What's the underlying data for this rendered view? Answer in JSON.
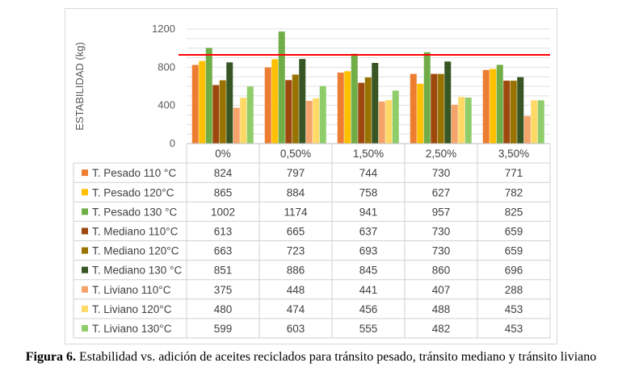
{
  "chart_data": {
    "type": "bar",
    "ylabel": "ESTABILIDAD (kg)",
    "ylim": [
      0,
      1200
    ],
    "yticks": [
      "0",
      "400",
      "800",
      "1200"
    ],
    "categories": [
      "0%",
      "0,50%",
      "1,50%",
      "2,50%",
      "3,50%"
    ],
    "reference_line": 930,
    "reference_color": "#ff0000",
    "grid": true,
    "legend": "data-table",
    "series": [
      {
        "name": "T. Pesado 110 °C",
        "color": "#ed7d31",
        "values": [
          824,
          797,
          744,
          730,
          771
        ]
      },
      {
        "name": "T. Pesado 120°C",
        "color": "#ffc000",
        "values": [
          865,
          884,
          758,
          627,
          782
        ]
      },
      {
        "name": "T. Pesado 130 °C",
        "color": "#70ad47",
        "values": [
          1002,
          1174,
          941,
          957,
          825
        ]
      },
      {
        "name": "T. Mediano 110°C",
        "color": "#9e480e",
        "values": [
          613,
          665,
          637,
          730,
          659
        ]
      },
      {
        "name": "T. Mediano 120°C",
        "color": "#997300",
        "values": [
          663,
          723,
          693,
          730,
          659
        ]
      },
      {
        "name": "T. Mediano 130 °C",
        "color": "#375623",
        "values": [
          851,
          886,
          845,
          860,
          696
        ]
      },
      {
        "name": "T. Liviano 110°C",
        "color": "#f4a46b",
        "values": [
          375,
          448,
          441,
          407,
          288
        ]
      },
      {
        "name": "T. Liviano 120°C",
        "color": "#ffd966",
        "values": [
          480,
          474,
          456,
          488,
          453
        ]
      },
      {
        "name": "T. Liviano 130°C",
        "color": "#8fcd6a",
        "values": [
          599,
          603,
          555,
          482,
          453
        ]
      }
    ]
  },
  "caption": {
    "label": "Figura 6.",
    "text": " Estabilidad vs. adición de aceites reciclados para tránsito pesado, tránsito mediano y tránsito liviano"
  }
}
